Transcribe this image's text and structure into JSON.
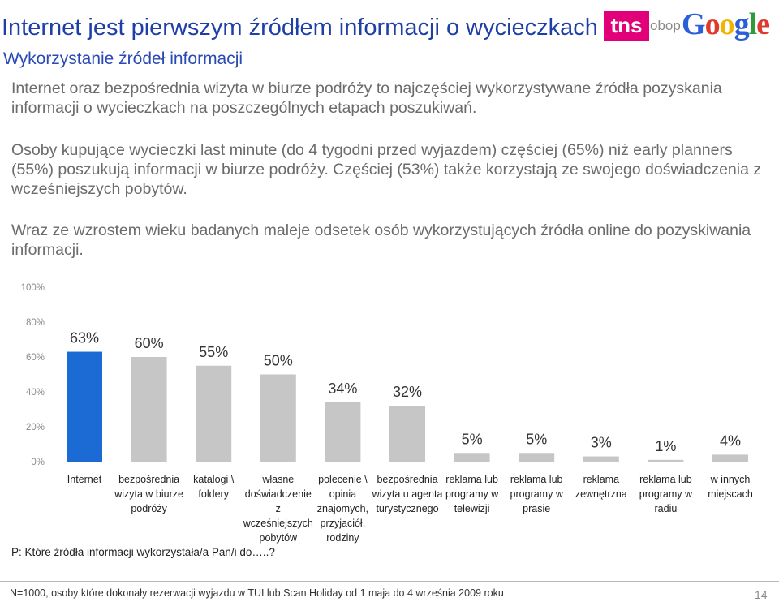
{
  "header": {
    "title": "Internet jest pierwszym źródłem informacji o wycieczkach",
    "subtitle": "Wykorzystanie źródeł informacji"
  },
  "logos": {
    "tns": "tns",
    "obop": "obop",
    "google": [
      "G",
      "o",
      "o",
      "g",
      "l",
      "e"
    ]
  },
  "paragraphs": [
    "Internet oraz bezpośrednia wizyta w biurze podróży to najczęściej wykorzystywane źródła pozyskania informacji o wycieczkach na poszczególnych etapach poszukiwań.",
    "Osoby kupujące wycieczki last minute (do 4 tygodni przed wyjazdem) częściej (65%) niż early planners (55%) poszukują informacji w biurze podróży. Częściej (53%) także korzystają ze swojego doświadczenia z wcześniejszych pobytów.",
    "Wraz ze wzrostem wieku badanych maleje odsetek osób wykorzystujących źródła online do pozyskiwania informacji."
  ],
  "chart_data": {
    "type": "bar",
    "categories": [
      [
        "Internet"
      ],
      [
        "bezpośrednia",
        "wizyta w biurze",
        "podróży"
      ],
      [
        "katalogi \\",
        "foldery"
      ],
      [
        "własne",
        "doświadczenie",
        "z",
        "wcześniejszych",
        "pobytów"
      ],
      [
        "polecenie \\",
        "opinia",
        "znajomych,",
        "przyjaciół,",
        "rodziny"
      ],
      [
        "bezpośrednia",
        "wizyta u agenta",
        "turystycznego"
      ],
      [
        "reklama lub",
        "programy w",
        "telewizji"
      ],
      [
        "reklama lub",
        "programy w",
        "prasie"
      ],
      [
        "reklama",
        "zewnętrzna"
      ],
      [
        "reklama lub",
        "programy w",
        "radiu"
      ],
      [
        "w innych",
        "miejscach"
      ]
    ],
    "values": [
      63,
      60,
      55,
      50,
      34,
      32,
      5,
      5,
      3,
      1,
      4
    ],
    "value_labels": [
      "63%",
      "60%",
      "55%",
      "50%",
      "34%",
      "32%",
      "5%",
      "5%",
      "3%",
      "1%",
      "4%"
    ],
    "yticks": [
      "100%",
      "80%",
      "60%",
      "40%",
      "20%",
      "0%"
    ],
    "ylim": [
      0,
      100
    ],
    "colors": {
      "highlight": "#1c6bd4",
      "default": "#c6c6c6"
    },
    "grid": false
  },
  "question": "P: Które źródła informacji wykorzystała/a Pan/i do…..?",
  "footer": {
    "note": "N=1000, osoby które dokonały rezerwacji wyjazdu w TUI lub Scan Holiday od 1 maja do 4 września 2009 roku",
    "page": "14"
  }
}
